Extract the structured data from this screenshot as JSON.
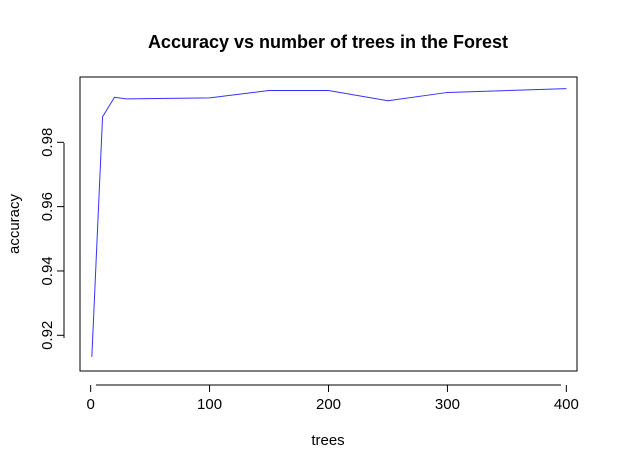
{
  "chart_data": {
    "type": "line",
    "title": "Accuracy vs number of trees in the Forest",
    "xlabel": "trees",
    "ylabel": "accuracy",
    "xlim": [
      -8.96,
      408.96
    ],
    "ylim": [
      0.9089,
      1.0003
    ],
    "xticks": [
      0,
      100,
      200,
      300,
      400
    ],
    "xtick_labels": [
      "0",
      "100",
      "200",
      "300",
      "400"
    ],
    "yticks": [
      0.92,
      0.94,
      0.96,
      0.98
    ],
    "ytick_labels": [
      "0.92",
      "0.94",
      "0.96",
      "0.98"
    ],
    "grid": false,
    "legend": "none",
    "series": [
      {
        "color": "#3333ff",
        "x": [
          1,
          10,
          20,
          30,
          100,
          150,
          200,
          250,
          300,
          400
        ],
        "y": [
          0.9133,
          0.9879,
          0.994,
          0.9935,
          0.9938,
          0.9961,
          0.9961,
          0.9929,
          0.9955,
          0.9967
        ]
      }
    ]
  }
}
